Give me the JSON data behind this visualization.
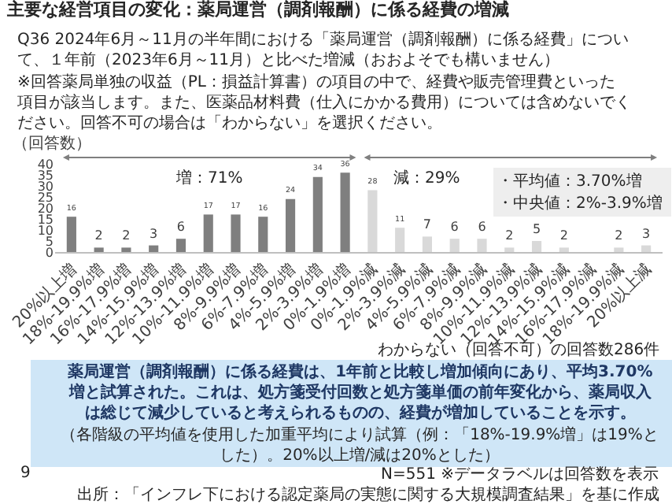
{
  "chart_data": {
    "type": "bar",
    "title": "主要な経営項目の変化：薬局運営（調剤報酬）に係る経費の増減",
    "subtitle": "Q36 2024年6月～11月の半年間における「薬局運営（調剤報酬）に係る経費」について、１年前（2023年6月～11月）と比べた増減（おおよそでも構いません）",
    "ylabel": "（回答数）",
    "categories": [
      "20%以上増",
      "18%-19.9%増",
      "16%-17.9%増",
      "14%-15.9%増",
      "12%-13.9%増",
      "10%-11.9%増",
      "8%-9.9%増",
      "6%-7.9%増",
      "4%-5.9%増",
      "2%-3.9%増",
      "0%-1.9%増",
      "0%-1.9%減",
      "2%-3.9%減",
      "4%-5.9%減",
      "6%-7.9%減",
      "8%-9.9%減",
      "10%-11.9%減",
      "12%-13.9%減",
      "14%-15.9%減",
      "16%-17.9%減",
      "18%-19.9%減",
      "20%以上減"
    ],
    "values": [
      16,
      2,
      2,
      3,
      6,
      17,
      17,
      16,
      24,
      34,
      36,
      28,
      11,
      7,
      6,
      6,
      2,
      5,
      2,
      0,
      2,
      3
    ],
    "value_labels": [
      "16",
      "2",
      "2",
      "3",
      "6",
      "17",
      "17",
      "16",
      "24",
      "34",
      "36",
      "28",
      "11",
      "7",
      "6",
      "6",
      "2",
      "5",
      "2",
      null,
      "2",
      "3"
    ],
    "colors": [
      "#7f7f7f",
      "#7f7f7f",
      "#7f7f7f",
      "#7f7f7f",
      "#7f7f7f",
      "#7f7f7f",
      "#7f7f7f",
      "#7f7f7f",
      "#7f7f7f",
      "#7f7f7f",
      "#7f7f7f",
      "#d9d9d9",
      "#d9d9d9",
      "#d9d9d9",
      "#d9d9d9",
      "#d9d9d9",
      "#d9d9d9",
      "#d9d9d9",
      "#d9d9d9",
      "#d9d9d9",
      "#d9d9d9",
      "#d9d9d9"
    ],
    "ylim": [
      0,
      40
    ],
    "yticks": [
      0,
      5,
      10,
      15,
      20,
      25,
      30,
      35,
      40
    ],
    "grid": false,
    "legend": false,
    "annotations": [
      "※回答薬局単独の収益（PL：損益計算書）の項目の中で、経費や販売管理費といった項目が該当します。また、医薬品材料費（仕入にかかる費用）については含めないでください。回答不可の場合は「わからない」を選択ください。",
      "増：71%",
      "減：29%",
      "・平均値：3.70%増",
      "・中央値：2%-3.9%増",
      "わからない（回答不可）の回答数286件",
      "薬局運営（調剤報酬）に係る経費は、1年前と比較し増加傾向にあり、平均3.70%増と試算された。これは、処方箋受付回数と処方箋単価の前年変化から、薬局収入は総じて減少していると考えられるものの、経費が増加していることを示す。",
      "（各階級の平均値を使用した加重平均により試算（例：「18%-19.9%増」は19%とした）。20%以上増/減は20%とした）",
      "N=551 ※データラベルは回答数を表示",
      "出所：「インフレ下における認定薬局の実態に関する大規模調査結果」を基に作成",
      "9"
    ]
  }
}
